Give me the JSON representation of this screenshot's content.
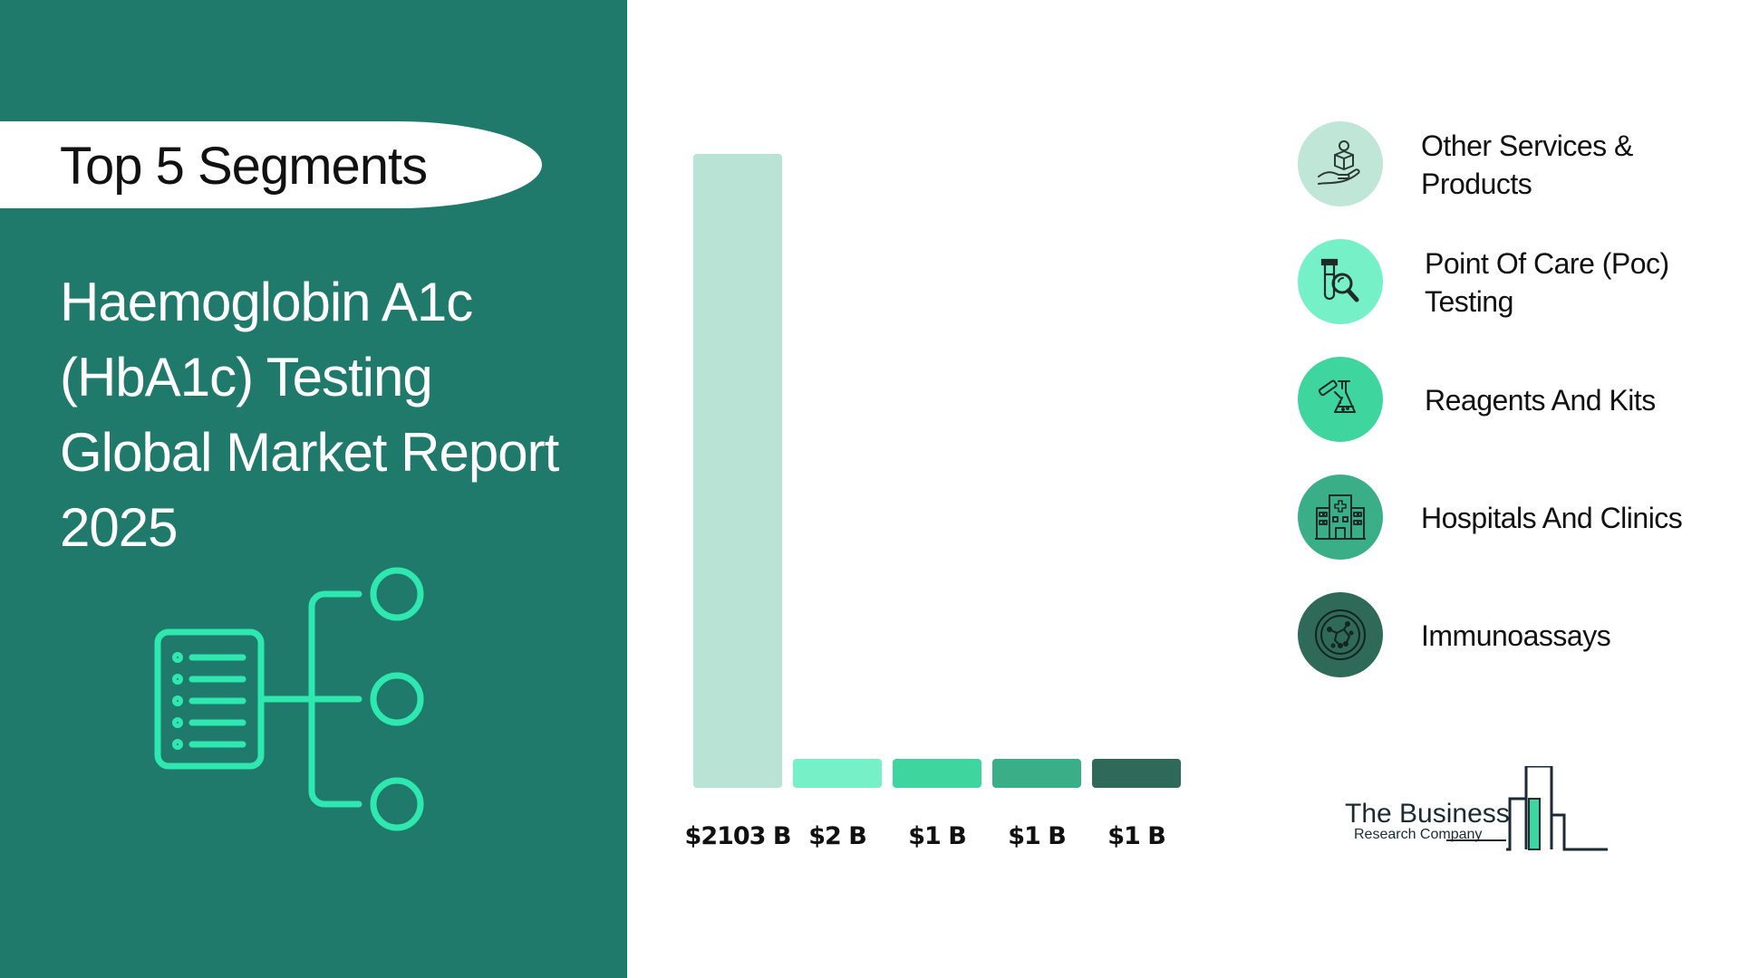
{
  "header": {
    "badge": "Top 5 Segments",
    "title_lines": [
      "Haemoglobin A1c",
      "(HbA1c) Testing",
      "Global Market Report",
      "2025"
    ]
  },
  "colors": {
    "panel": "#1f7a6b",
    "accent": "#2ee8b0",
    "bars": [
      "#b9e3d4",
      "#76f0c6",
      "#3fd59e",
      "#3aae86",
      "#2e6a57"
    ]
  },
  "icons": [
    "list-tree-icon",
    "hand-box-gear-icon",
    "test-tube-magnifier-icon",
    "flask-pipette-icon",
    "hospital-building-icon",
    "petri-dish-icon"
  ],
  "chart_data": {
    "type": "bar",
    "categories": [
      "Other Services & Products",
      "Point Of Care (Poc) Testing",
      "Reagents And Kits",
      "Hospitals And Clinics",
      "Immunoassays"
    ],
    "values": [
      2103,
      2,
      1,
      1,
      1
    ],
    "value_labels": [
      "$2103 B",
      "$2 B",
      "$1 B",
      "$1 B",
      "$1 B"
    ],
    "unit": "B"
  },
  "legend": {
    "items": [
      {
        "label": "Other Services & Products",
        "icon": "hand-box-gear-icon",
        "color": "#b9e3d4"
      },
      {
        "label": "Point Of Care (Poc) Testing",
        "icon": "test-tube-magnifier-icon",
        "color": "#76f0c6"
      },
      {
        "label": "Reagents And Kits",
        "icon": "flask-pipette-icon",
        "color": "#3fd59e"
      },
      {
        "label": "Hospitals And Clinics",
        "icon": "hospital-building-icon",
        "color": "#3aae86"
      },
      {
        "label": "Immunoassays",
        "icon": "petri-dish-icon",
        "color": "#2e6a57"
      }
    ]
  },
  "logo": {
    "line1": "The Business",
    "line2": "Research Company"
  }
}
